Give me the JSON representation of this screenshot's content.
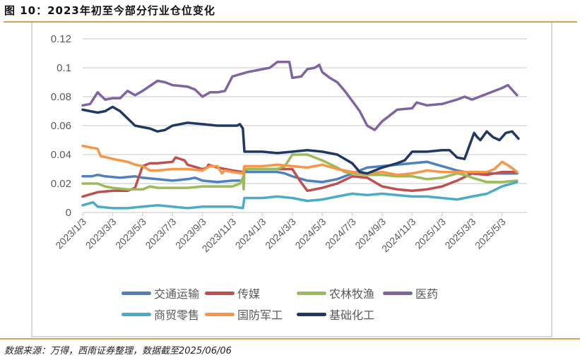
{
  "header": {
    "title": "图 10：2023年初至今部分行业仓位变化"
  },
  "footer": {
    "source": "数据来源：万得，西南证券整理，数据截至2025/06/06"
  },
  "colors": {
    "rule": "#d4a05a",
    "grid": "#d9d9d9",
    "axis_text": "#595959"
  },
  "chart_data": {
    "type": "line",
    "title": "2023年初至今部分行业仓位变化",
    "xlabel": "",
    "ylabel": "",
    "ylim": [
      0,
      0.12
    ],
    "yticks": [
      "0",
      "0.02",
      "0.04",
      "0.06",
      "0.08",
      "0.1",
      "0.12"
    ],
    "ytick_values": [
      0,
      0.02,
      0.04,
      0.06,
      0.08,
      0.1,
      0.12
    ],
    "grid": true,
    "legend_position": "bottom",
    "x_tick_labels": [
      "2023/1/3",
      "2023/3/3",
      "2023/5/3",
      "2023/7/3",
      "2023/9/3",
      "2023/11/3",
      "2024/1/3",
      "2024/3/3",
      "2024/5/3",
      "2024/7/3",
      "2024/9/3",
      "2024/11/3",
      "2025/1/3",
      "2025/3/3",
      "2025/5/3"
    ],
    "x_unit": "months since 2023/1/3",
    "x_range": [
      0,
      29.1
    ],
    "series": [
      {
        "name": "交通运输",
        "color": "#4f81bd",
        "points": [
          [
            0,
            0.025
          ],
          [
            0.6,
            0.025
          ],
          [
            1,
            0.026
          ],
          [
            1.5,
            0.025
          ],
          [
            2.5,
            0.024
          ],
          [
            3.5,
            0.025
          ],
          [
            4,
            0.024
          ],
          [
            5,
            0.023
          ],
          [
            6,
            0.022
          ],
          [
            7,
            0.023
          ],
          [
            7.5,
            0.024
          ],
          [
            8,
            0.022
          ],
          [
            9,
            0.021
          ],
          [
            10,
            0.022
          ],
          [
            10.7,
            0.022
          ],
          [
            10.8,
            0.028
          ],
          [
            11,
            0.028
          ],
          [
            13,
            0.028
          ],
          [
            13.5,
            0.027
          ],
          [
            14,
            0.025
          ],
          [
            15,
            0.022
          ],
          [
            16,
            0.021
          ],
          [
            17,
            0.023
          ],
          [
            18,
            0.027
          ],
          [
            19,
            0.031
          ],
          [
            20,
            0.032
          ],
          [
            21,
            0.033
          ],
          [
            22,
            0.034
          ],
          [
            23,
            0.035
          ],
          [
            24,
            0.032
          ],
          [
            25,
            0.029
          ],
          [
            26,
            0.027
          ],
          [
            27,
            0.027
          ],
          [
            28,
            0.027
          ],
          [
            29,
            0.027
          ]
        ]
      },
      {
        "name": "传媒",
        "color": "#c0504d",
        "points": [
          [
            0,
            0.011
          ],
          [
            1,
            0.014
          ],
          [
            2,
            0.015
          ],
          [
            3,
            0.015
          ],
          [
            3.5,
            0.017
          ],
          [
            4,
            0.032
          ],
          [
            4.5,
            0.034
          ],
          [
            5,
            0.034
          ],
          [
            6,
            0.035
          ],
          [
            6.2,
            0.038
          ],
          [
            6.8,
            0.036
          ],
          [
            7,
            0.033
          ],
          [
            8,
            0.03
          ],
          [
            8.3,
            0.031
          ],
          [
            8.4,
            0.033
          ],
          [
            9,
            0.031
          ],
          [
            10,
            0.029
          ],
          [
            10.7,
            0.028
          ],
          [
            11,
            0.03
          ],
          [
            13,
            0.03
          ],
          [
            14,
            0.03
          ],
          [
            14.5,
            0.022
          ],
          [
            15,
            0.015
          ],
          [
            16,
            0.017
          ],
          [
            17,
            0.02
          ],
          [
            18,
            0.025
          ],
          [
            19,
            0.024
          ],
          [
            20,
            0.018
          ],
          [
            21,
            0.016
          ],
          [
            22,
            0.015
          ],
          [
            23,
            0.016
          ],
          [
            24,
            0.018
          ],
          [
            25,
            0.022
          ],
          [
            26,
            0.027
          ],
          [
            27,
            0.026
          ],
          [
            28,
            0.028
          ],
          [
            29,
            0.028
          ]
        ]
      },
      {
        "name": "农林牧渔",
        "color": "#9bbb59",
        "points": [
          [
            0,
            0.02
          ],
          [
            1,
            0.02
          ],
          [
            1.5,
            0.018
          ],
          [
            2,
            0.017
          ],
          [
            3,
            0.016
          ],
          [
            4,
            0.016
          ],
          [
            4.5,
            0.018
          ],
          [
            5,
            0.017
          ],
          [
            6,
            0.017
          ],
          [
            7,
            0.017
          ],
          [
            8,
            0.018
          ],
          [
            9,
            0.018
          ],
          [
            10,
            0.018
          ],
          [
            10.5,
            0.02
          ],
          [
            10.7,
            0.024
          ],
          [
            10.75,
            0.016
          ],
          [
            10.8,
            0.03
          ],
          [
            12,
            0.03
          ],
          [
            13,
            0.03
          ],
          [
            13.5,
            0.032
          ],
          [
            14,
            0.04
          ],
          [
            14.5,
            0.04
          ],
          [
            15,
            0.04
          ],
          [
            16,
            0.036
          ],
          [
            17,
            0.031
          ],
          [
            17.5,
            0.028
          ],
          [
            18,
            0.027
          ],
          [
            19,
            0.026
          ],
          [
            20,
            0.026
          ],
          [
            21,
            0.025
          ],
          [
            22,
            0.025
          ],
          [
            23,
            0.023
          ],
          [
            24,
            0.024
          ],
          [
            25,
            0.027
          ],
          [
            25.5,
            0.026
          ],
          [
            26,
            0.024
          ],
          [
            27,
            0.021
          ],
          [
            28,
            0.021
          ],
          [
            29,
            0.022
          ]
        ]
      },
      {
        "name": "医药",
        "color": "#8064a2",
        "points": [
          [
            0,
            0.074
          ],
          [
            0.5,
            0.075
          ],
          [
            1,
            0.083
          ],
          [
            1.5,
            0.078
          ],
          [
            2,
            0.079
          ],
          [
            2.5,
            0.079
          ],
          [
            3,
            0.084
          ],
          [
            3.5,
            0.081
          ],
          [
            4,
            0.084
          ],
          [
            5,
            0.091
          ],
          [
            5.5,
            0.09
          ],
          [
            6,
            0.088
          ],
          [
            7,
            0.087
          ],
          [
            7.5,
            0.085
          ],
          [
            8,
            0.08
          ],
          [
            8.5,
            0.083
          ],
          [
            9,
            0.083
          ],
          [
            9.5,
            0.084
          ],
          [
            10,
            0.094
          ],
          [
            11,
            0.097
          ],
          [
            12,
            0.099
          ],
          [
            12.5,
            0.1
          ],
          [
            13,
            0.104
          ],
          [
            13.8,
            0.104
          ],
          [
            14,
            0.093
          ],
          [
            14.6,
            0.094
          ],
          [
            15,
            0.099
          ],
          [
            15.5,
            0.1
          ],
          [
            15.8,
            0.102
          ],
          [
            16,
            0.097
          ],
          [
            16.5,
            0.093
          ],
          [
            17,
            0.09
          ],
          [
            17.5,
            0.084
          ],
          [
            18,
            0.077
          ],
          [
            18.5,
            0.07
          ],
          [
            19,
            0.06
          ],
          [
            19.5,
            0.057
          ],
          [
            20,
            0.063
          ],
          [
            20.5,
            0.067
          ],
          [
            21,
            0.071
          ],
          [
            22,
            0.072
          ],
          [
            22.3,
            0.076
          ],
          [
            23,
            0.074
          ],
          [
            24,
            0.075
          ],
          [
            25,
            0.078
          ],
          [
            25.5,
            0.08
          ],
          [
            26,
            0.078
          ],
          [
            28,
            0.086
          ],
          [
            28.4,
            0.088
          ],
          [
            29,
            0.081
          ]
        ]
      },
      {
        "name": "商贸零售",
        "color": "#4bacc6",
        "points": [
          [
            0,
            0.005
          ],
          [
            0.7,
            0.007
          ],
          [
            1,
            0.004
          ],
          [
            2,
            0.003
          ],
          [
            3,
            0.003
          ],
          [
            4,
            0.004
          ],
          [
            5,
            0.005
          ],
          [
            6,
            0.004
          ],
          [
            7,
            0.003
          ],
          [
            8,
            0.004
          ],
          [
            9,
            0.004
          ],
          [
            10,
            0.004
          ],
          [
            10.7,
            0.003
          ],
          [
            10.8,
            0.01
          ],
          [
            12,
            0.01
          ],
          [
            13,
            0.011
          ],
          [
            14,
            0.01
          ],
          [
            15,
            0.008
          ],
          [
            16,
            0.009
          ],
          [
            17,
            0.011
          ],
          [
            18,
            0.013
          ],
          [
            19,
            0.012
          ],
          [
            20,
            0.013
          ],
          [
            21,
            0.012
          ],
          [
            22,
            0.011
          ],
          [
            23,
            0.011
          ],
          [
            24,
            0.01
          ],
          [
            25,
            0.009
          ],
          [
            26,
            0.011
          ],
          [
            27,
            0.013
          ],
          [
            28,
            0.018
          ],
          [
            29,
            0.021
          ]
        ]
      },
      {
        "name": "国防军工",
        "color": "#f79646",
        "points": [
          [
            0,
            0.046
          ],
          [
            1,
            0.044
          ],
          [
            1.2,
            0.039
          ],
          [
            2,
            0.037
          ],
          [
            3,
            0.035
          ],
          [
            3.5,
            0.033
          ],
          [
            4,
            0.032
          ],
          [
            4.5,
            0.029
          ],
          [
            5,
            0.029
          ],
          [
            6,
            0.03
          ],
          [
            7,
            0.03
          ],
          [
            8,
            0.029
          ],
          [
            8.5,
            0.032
          ],
          [
            9,
            0.032
          ],
          [
            9.3,
            0.027
          ],
          [
            9.5,
            0.029
          ],
          [
            10,
            0.028
          ],
          [
            10.7,
            0.027
          ],
          [
            10.8,
            0.032
          ],
          [
            12,
            0.032
          ],
          [
            13,
            0.033
          ],
          [
            14,
            0.032
          ],
          [
            15,
            0.031
          ],
          [
            16,
            0.033
          ],
          [
            17,
            0.03
          ],
          [
            18,
            0.028
          ],
          [
            19,
            0.027
          ],
          [
            20,
            0.028
          ],
          [
            21,
            0.026
          ],
          [
            22,
            0.027
          ],
          [
            23,
            0.029
          ],
          [
            24,
            0.028
          ],
          [
            25,
            0.028
          ],
          [
            26,
            0.028
          ],
          [
            27,
            0.028
          ],
          [
            27.5,
            0.03
          ],
          [
            28,
            0.035
          ],
          [
            28.5,
            0.032
          ],
          [
            29,
            0.028
          ]
        ]
      },
      {
        "name": "基础化工",
        "color": "#1f3864",
        "points": [
          [
            0,
            0.071
          ],
          [
            0.5,
            0.07
          ],
          [
            1,
            0.069
          ],
          [
            1.5,
            0.07
          ],
          [
            2,
            0.073
          ],
          [
            2.5,
            0.07
          ],
          [
            3,
            0.065
          ],
          [
            3.5,
            0.06
          ],
          [
            4,
            0.059
          ],
          [
            4.5,
            0.058
          ],
          [
            5,
            0.056
          ],
          [
            5.5,
            0.057
          ],
          [
            6,
            0.06
          ],
          [
            7,
            0.062
          ],
          [
            8,
            0.061
          ],
          [
            9,
            0.06
          ],
          [
            10.3,
            0.06
          ],
          [
            10.5,
            0.061
          ],
          [
            10.7,
            0.058
          ],
          [
            10.8,
            0.042
          ],
          [
            12,
            0.042
          ],
          [
            13,
            0.041
          ],
          [
            14,
            0.042
          ],
          [
            15,
            0.043
          ],
          [
            16,
            0.042
          ],
          [
            17,
            0.04
          ],
          [
            18,
            0.034
          ],
          [
            18.5,
            0.028
          ],
          [
            19,
            0.027
          ],
          [
            20,
            0.031
          ],
          [
            21,
            0.034
          ],
          [
            21.5,
            0.036
          ],
          [
            22,
            0.042
          ],
          [
            23,
            0.042
          ],
          [
            24,
            0.043
          ],
          [
            24.5,
            0.043
          ],
          [
            25,
            0.038
          ],
          [
            25.5,
            0.037
          ],
          [
            27,
            0.055
          ],
          [
            27.5,
            0.052
          ],
          [
            28,
            0.05
          ],
          [
            29,
            0.056
          ],
          [
            30,
            0.052
          ],
          [
            31,
            0.05
          ],
          [
            32,
            0.055
          ],
          [
            33,
            0.056
          ],
          [
            34,
            0.051
          ]
        ]
      }
    ]
  }
}
